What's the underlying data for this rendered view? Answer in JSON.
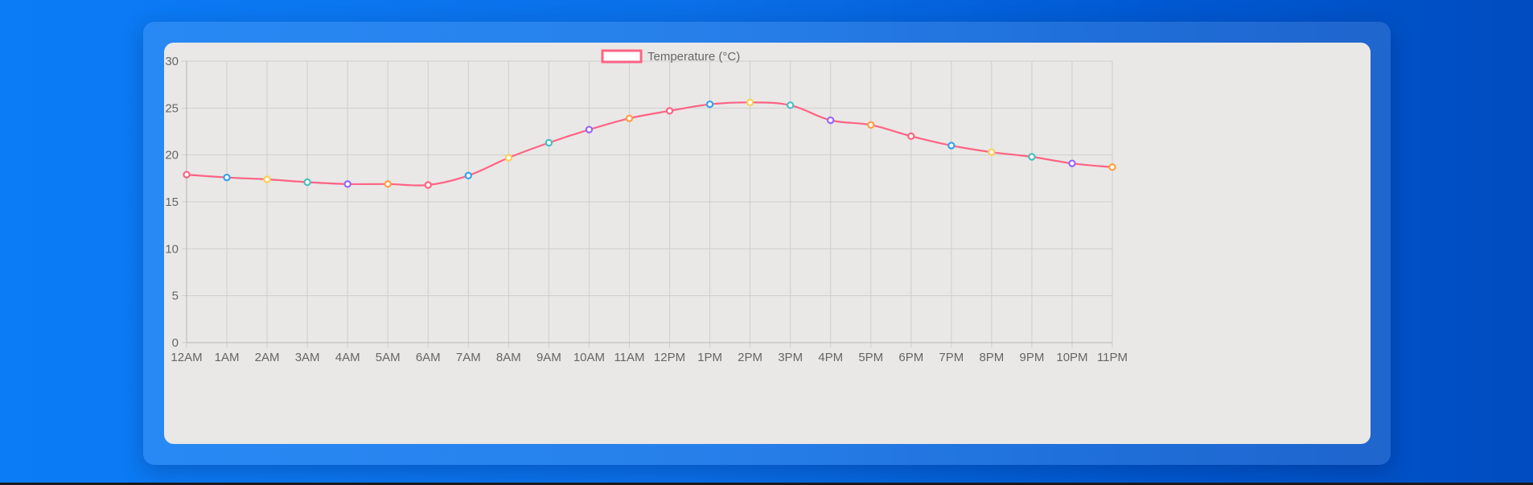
{
  "colors": {
    "line": "#ff6384",
    "legend_fill": "#ffffff",
    "point_borders": [
      "#ff6384",
      "#36a2eb",
      "#ffce56",
      "#4bc0c0",
      "#9966ff",
      "#ff9f40"
    ],
    "grid": "#cfcecc",
    "axis": "#b7b6b4",
    "text": "#666666"
  },
  "chart_data": {
    "type": "line",
    "title": "",
    "xlabel": "",
    "ylabel": "",
    "legend_position": "top",
    "grid": true,
    "ylim": [
      0,
      30
    ],
    "yticks": [
      0,
      5,
      10,
      15,
      20,
      25,
      30
    ],
    "categories": [
      "12AM",
      "1AM",
      "2AM",
      "3AM",
      "4AM",
      "5AM",
      "6AM",
      "7AM",
      "8AM",
      "9AM",
      "10AM",
      "11AM",
      "12PM",
      "1PM",
      "2PM",
      "3PM",
      "4PM",
      "5PM",
      "6PM",
      "7PM",
      "8PM",
      "9PM",
      "10PM",
      "11PM"
    ],
    "series": [
      {
        "name": "Temperature (°C)",
        "values": [
          17.9,
          17.6,
          17.4,
          17.1,
          16.9,
          16.9,
          16.8,
          17.8,
          19.7,
          21.3,
          22.7,
          23.9,
          24.7,
          25.4,
          25.6,
          25.3,
          23.7,
          23.2,
          22.0,
          21.0,
          20.3,
          19.8,
          19.1,
          18.7
        ]
      }
    ]
  }
}
